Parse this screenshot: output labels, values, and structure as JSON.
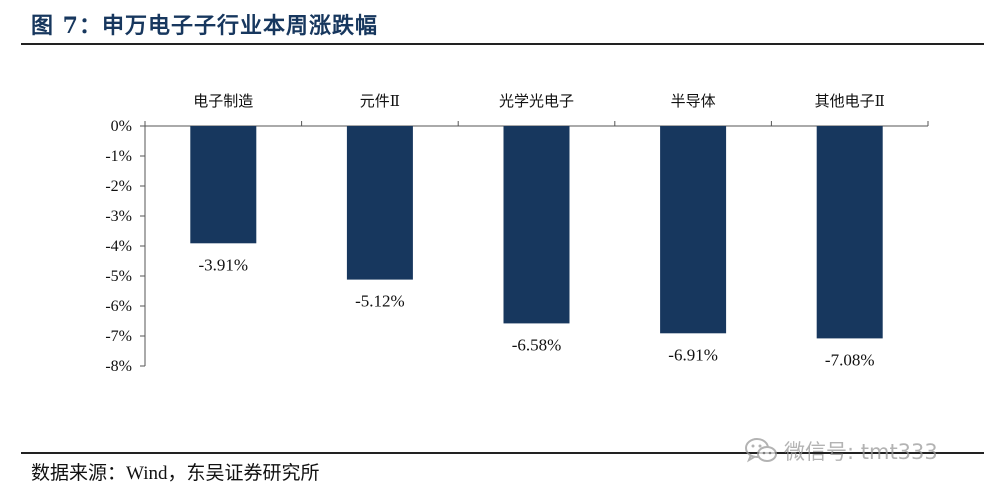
{
  "title": "图 7：申万电子子行业本周涨跌幅",
  "source": {
    "prefix": "数据来源：",
    "wind": "Wind",
    "suffix": "，东吴证券研究所"
  },
  "watermark": {
    "icon": "wechat-icon",
    "text": "微信号: tmt333"
  },
  "colors": {
    "bar": "#17375e",
    "title": "#17375e"
  },
  "chart_data": {
    "type": "bar",
    "title": "",
    "xlabel": "",
    "ylabel": "",
    "categories": [
      "电子制造",
      "元件Ⅱ",
      "光学光电子",
      "半导体",
      "其他电子Ⅱ"
    ],
    "values": [
      -3.91,
      -5.12,
      -6.58,
      -6.91,
      -7.08
    ],
    "data_labels": [
      "-3.91%",
      "-5.12%",
      "-6.58%",
      "-6.91%",
      "-7.08%"
    ],
    "yticks": [
      0,
      -1,
      -2,
      -3,
      -4,
      -5,
      -6,
      -7,
      -8
    ],
    "ytick_labels": [
      "0%",
      "-1%",
      "-2%",
      "-3%",
      "-4%",
      "-5%",
      "-6%",
      "-7%",
      "-8%"
    ],
    "ylim": [
      -8,
      0
    ],
    "unit": "%",
    "grid": false,
    "category_axis_position": "top"
  }
}
